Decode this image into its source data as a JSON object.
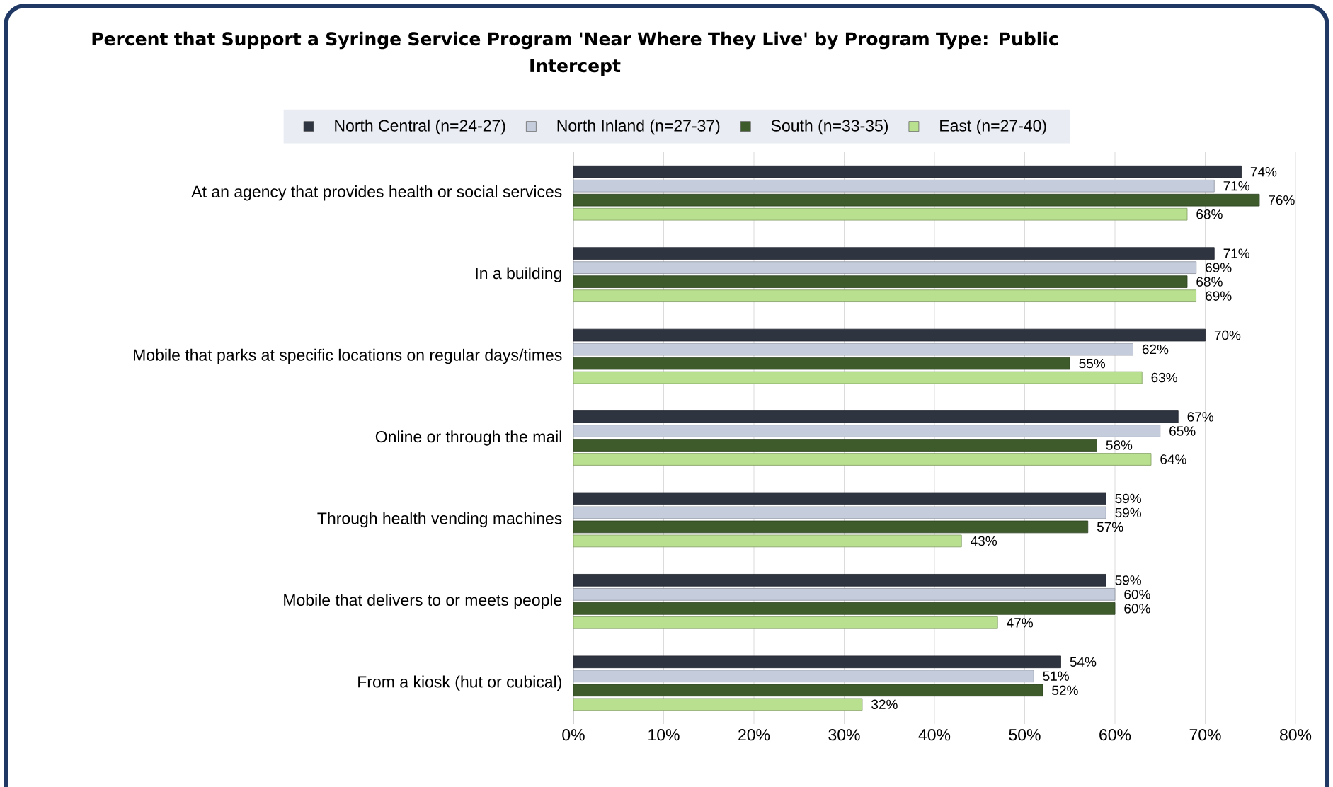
{
  "chart_data": {
    "type": "bar",
    "orientation": "horizontal",
    "title": "Percent that Support a Syringe Service Program 'Near Where They Live' by Program Type: Public Intercept",
    "categories": [
      "At an agency that provides health or social services",
      "In a building",
      "Mobile that parks at specific locations on regular days/times",
      "Online or through the mail",
      "Through health vending machines",
      "Mobile that delivers to or meets people",
      "From a kiosk (hut or cubical)"
    ],
    "series": [
      {
        "name": "North Central (n=24-27)",
        "color": "#2f3540",
        "values": [
          74,
          71,
          70,
          67,
          59,
          59,
          54
        ],
        "value_labels": [
          "74%",
          "71%",
          "70%",
          "67%",
          "59%",
          "59%",
          "54%"
        ]
      },
      {
        "name": "North Inland (n=27-37)",
        "color": "#c5cddc",
        "values": [
          71,
          69,
          62,
          65,
          59,
          60,
          51
        ],
        "value_labels": [
          "71%",
          "69%",
          "62%",
          "65%",
          "59%",
          "60%",
          "51%"
        ]
      },
      {
        "name": "South (n=33-35)",
        "color": "#3e5b2b",
        "values": [
          76,
          68,
          55,
          58,
          57,
          60,
          52
        ],
        "value_labels": [
          "76%",
          "68%",
          "55%",
          "58%",
          "57%",
          "60%",
          "52%"
        ]
      },
      {
        "name": "East (n=27-40)",
        "color": "#b9e08e",
        "values": [
          68,
          69,
          63,
          64,
          43,
          47,
          32
        ],
        "value_labels": [
          "68%",
          "69%",
          "63%",
          "64%",
          "43%",
          "47%",
          "32%"
        ]
      }
    ],
    "xlim": [
      0,
      80
    ],
    "xticks": [
      {
        "value": 0,
        "label": "0%"
      },
      {
        "value": 10,
        "label": "10%"
      },
      {
        "value": 20,
        "label": "20%"
      },
      {
        "value": 30,
        "label": "30%"
      },
      {
        "value": 40,
        "label": "40%"
      },
      {
        "value": 50,
        "label": "50%"
      },
      {
        "value": 60,
        "label": "60%"
      },
      {
        "value": 70,
        "label": "70%"
      },
      {
        "value": 80,
        "label": "80%"
      }
    ],
    "grid": "x",
    "legend": "top"
  }
}
